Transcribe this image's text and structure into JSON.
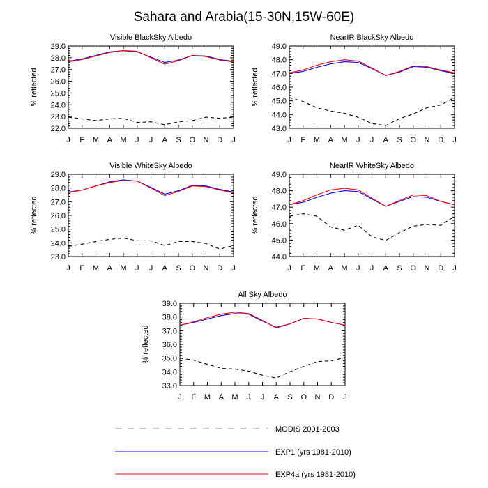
{
  "chart_data": {
    "type": "line",
    "title": "Sahara and Arabia(15-30N,15W-60E)",
    "x_tick_labels": [
      "J",
      "F",
      "M",
      "A",
      "M",
      "J",
      "J",
      "A",
      "S",
      "O",
      "N",
      "D",
      "J"
    ],
    "legend": [
      {
        "key": "modis",
        "label": "MODIS 2001-2003",
        "color": "#000000",
        "style": "dashed"
      },
      {
        "key": "exp1",
        "label": "EXP1 (yrs 1981-2010)",
        "color": "#0000ff",
        "style": "solid"
      },
      {
        "key": "exp4a",
        "label": "EXP4a (yrs 1981-2010)",
        "color": "#ff0000",
        "style": "solid"
      }
    ],
    "panels": [
      {
        "name": "visible-blacksky",
        "title": "Visible BlackSky Albedo",
        "ylabel": "% reflected",
        "ylim": [
          22.0,
          29.0
        ],
        "yticks": [
          "22.0",
          "23.0",
          "24.0",
          "25.0",
          "26.0",
          "27.0",
          "28.0",
          "29.0"
        ],
        "series": [
          {
            "key": "modis",
            "values": [
              22.95,
              22.8,
              22.65,
              22.8,
              22.85,
              22.5,
              22.55,
              22.3,
              22.55,
              22.65,
              22.95,
              22.85,
              22.95
            ]
          },
          {
            "key": "exp1",
            "values": [
              27.7,
              27.9,
              28.2,
              28.5,
              28.6,
              28.5,
              28.05,
              27.6,
              27.8,
              28.2,
              28.15,
              27.85,
              27.7
            ]
          },
          {
            "key": "exp4a",
            "values": [
              27.65,
              27.85,
              28.15,
              28.45,
              28.62,
              28.55,
              28.0,
              27.45,
              27.75,
              28.2,
              28.1,
              27.8,
              27.65
            ]
          }
        ]
      },
      {
        "name": "nearir-blacksky",
        "title": "NearIR BlackSky Albedo",
        "ylabel": "% reflected",
        "ylim": [
          43.0,
          49.0
        ],
        "yticks": [
          "43.0",
          "44.0",
          "45.0",
          "46.0",
          "47.0",
          "48.0",
          "49.0"
        ],
        "series": [
          {
            "key": "modis",
            "values": [
              45.25,
              44.95,
              44.5,
              44.25,
              44.1,
              43.8,
              43.35,
              43.2,
              43.7,
              44.05,
              44.5,
              44.7,
              45.25
            ]
          },
          {
            "key": "exp1",
            "values": [
              47.0,
              47.15,
              47.45,
              47.7,
              47.85,
              47.8,
              47.35,
              46.85,
              47.1,
              47.5,
              47.45,
              47.2,
              47.0
            ]
          },
          {
            "key": "exp4a",
            "values": [
              47.05,
              47.25,
              47.6,
              47.85,
              48.0,
              47.9,
              47.4,
              46.85,
              47.15,
              47.55,
              47.5,
              47.25,
              47.05
            ]
          }
        ]
      },
      {
        "name": "visible-whitesky",
        "title": "Visible WhiteSky Albedo",
        "ylabel": "% reflected",
        "ylim": [
          23.0,
          29.0
        ],
        "yticks": [
          "23.0",
          "24.0",
          "25.0",
          "26.0",
          "27.0",
          "28.0",
          "29.0"
        ],
        "series": [
          {
            "key": "modis",
            "values": [
              23.75,
              23.9,
              24.1,
              24.25,
              24.35,
              24.15,
              24.15,
              23.8,
              24.1,
              24.1,
              23.95,
              23.55,
              23.8
            ]
          },
          {
            "key": "exp1",
            "values": [
              27.7,
              27.85,
              28.15,
              28.45,
              28.6,
              28.5,
              28.05,
              27.55,
              27.8,
              28.2,
              28.15,
              27.9,
              27.7
            ]
          },
          {
            "key": "exp4a",
            "values": [
              27.65,
              27.85,
              28.15,
              28.4,
              28.55,
              28.5,
              28.0,
              27.45,
              27.75,
              28.15,
              28.1,
              27.85,
              27.65
            ]
          }
        ]
      },
      {
        "name": "nearir-whitesky",
        "title": "NearIR WhiteSky Albedo",
        "ylabel": "% reflected",
        "ylim": [
          44.0,
          49.0
        ],
        "yticks": [
          "44.0",
          "45.0",
          "46.0",
          "47.0",
          "48.0",
          "49.0"
        ],
        "series": [
          {
            "key": "modis",
            "values": [
              46.45,
              46.6,
              46.45,
              45.8,
              45.6,
              45.9,
              45.2,
              44.98,
              45.45,
              45.85,
              45.95,
              45.9,
              46.45
            ]
          },
          {
            "key": "exp1",
            "values": [
              47.15,
              47.3,
              47.6,
              47.85,
              48.0,
              47.95,
              47.5,
              47.05,
              47.35,
              47.65,
              47.6,
              47.35,
              47.15
            ]
          },
          {
            "key": "exp4a",
            "values": [
              47.15,
              47.4,
              47.75,
              48.05,
              48.15,
              48.05,
              47.55,
              47.05,
              47.4,
              47.75,
              47.7,
              47.35,
              47.15
            ]
          }
        ]
      },
      {
        "name": "all-sky",
        "title": "All Sky Albedo",
        "ylabel": "% reflected",
        "ylim": [
          33.0,
          39.0
        ],
        "yticks": [
          "33.0",
          "34.0",
          "35.0",
          "36.0",
          "37.0",
          "38.0",
          "39.0"
        ],
        "series": [
          {
            "key": "modis",
            "values": [
              35.0,
              34.85,
              34.55,
              34.25,
              34.2,
              34.05,
              33.75,
              33.55,
              34.0,
              34.4,
              34.75,
              34.8,
              35.05
            ]
          },
          {
            "key": "exp1",
            "values": [
              37.4,
              37.6,
              37.85,
              38.1,
              38.25,
              38.2,
              37.7,
              37.25,
              37.5,
              37.9,
              37.85,
              37.6,
              37.4
            ]
          },
          {
            "key": "exp4a",
            "values": [
              37.4,
              37.65,
              37.95,
              38.2,
              38.35,
              38.25,
              37.75,
              37.2,
              37.5,
              37.9,
              37.85,
              37.6,
              37.4
            ]
          }
        ]
      }
    ]
  }
}
